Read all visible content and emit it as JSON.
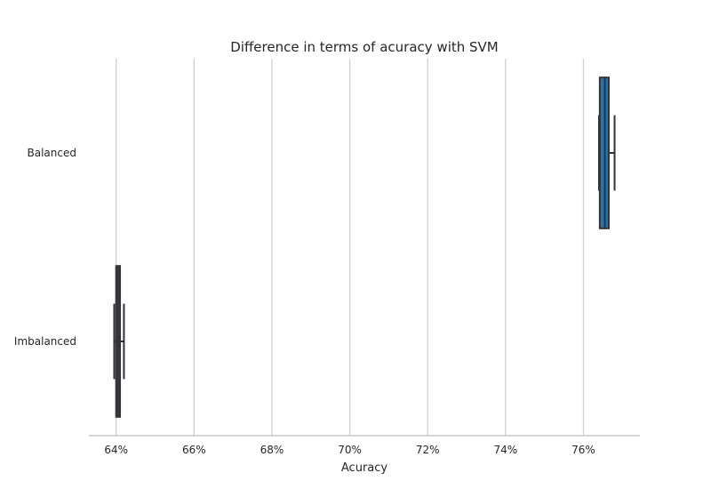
{
  "chart_data": {
    "type": "boxplot",
    "title": "Difference in terms of acuracy with SVM",
    "xlabel": "Acuracy",
    "ylabel": "",
    "xlim": [
      63.3,
      77.45
    ],
    "xticks": [
      64,
      66,
      68,
      70,
      72,
      74,
      76
    ],
    "xtick_labels": [
      "64%",
      "66%",
      "68%",
      "70%",
      "72%",
      "74%",
      "76%"
    ],
    "grid": "vertical",
    "categories": [
      "Balanced",
      "Imbalanced"
    ],
    "boxes": [
      {
        "category": "Balanced",
        "whisker_low": 76.4,
        "q1": 76.42,
        "median": 76.55,
        "q3": 76.65,
        "whisker_high": 76.8,
        "color": "#1f77b4"
      },
      {
        "category": "Imbalanced",
        "whisker_low": 63.95,
        "q1": 64.0,
        "median": 64.05,
        "q3": 64.1,
        "whisker_high": 64.2,
        "color": "#2b5f8a"
      }
    ]
  }
}
